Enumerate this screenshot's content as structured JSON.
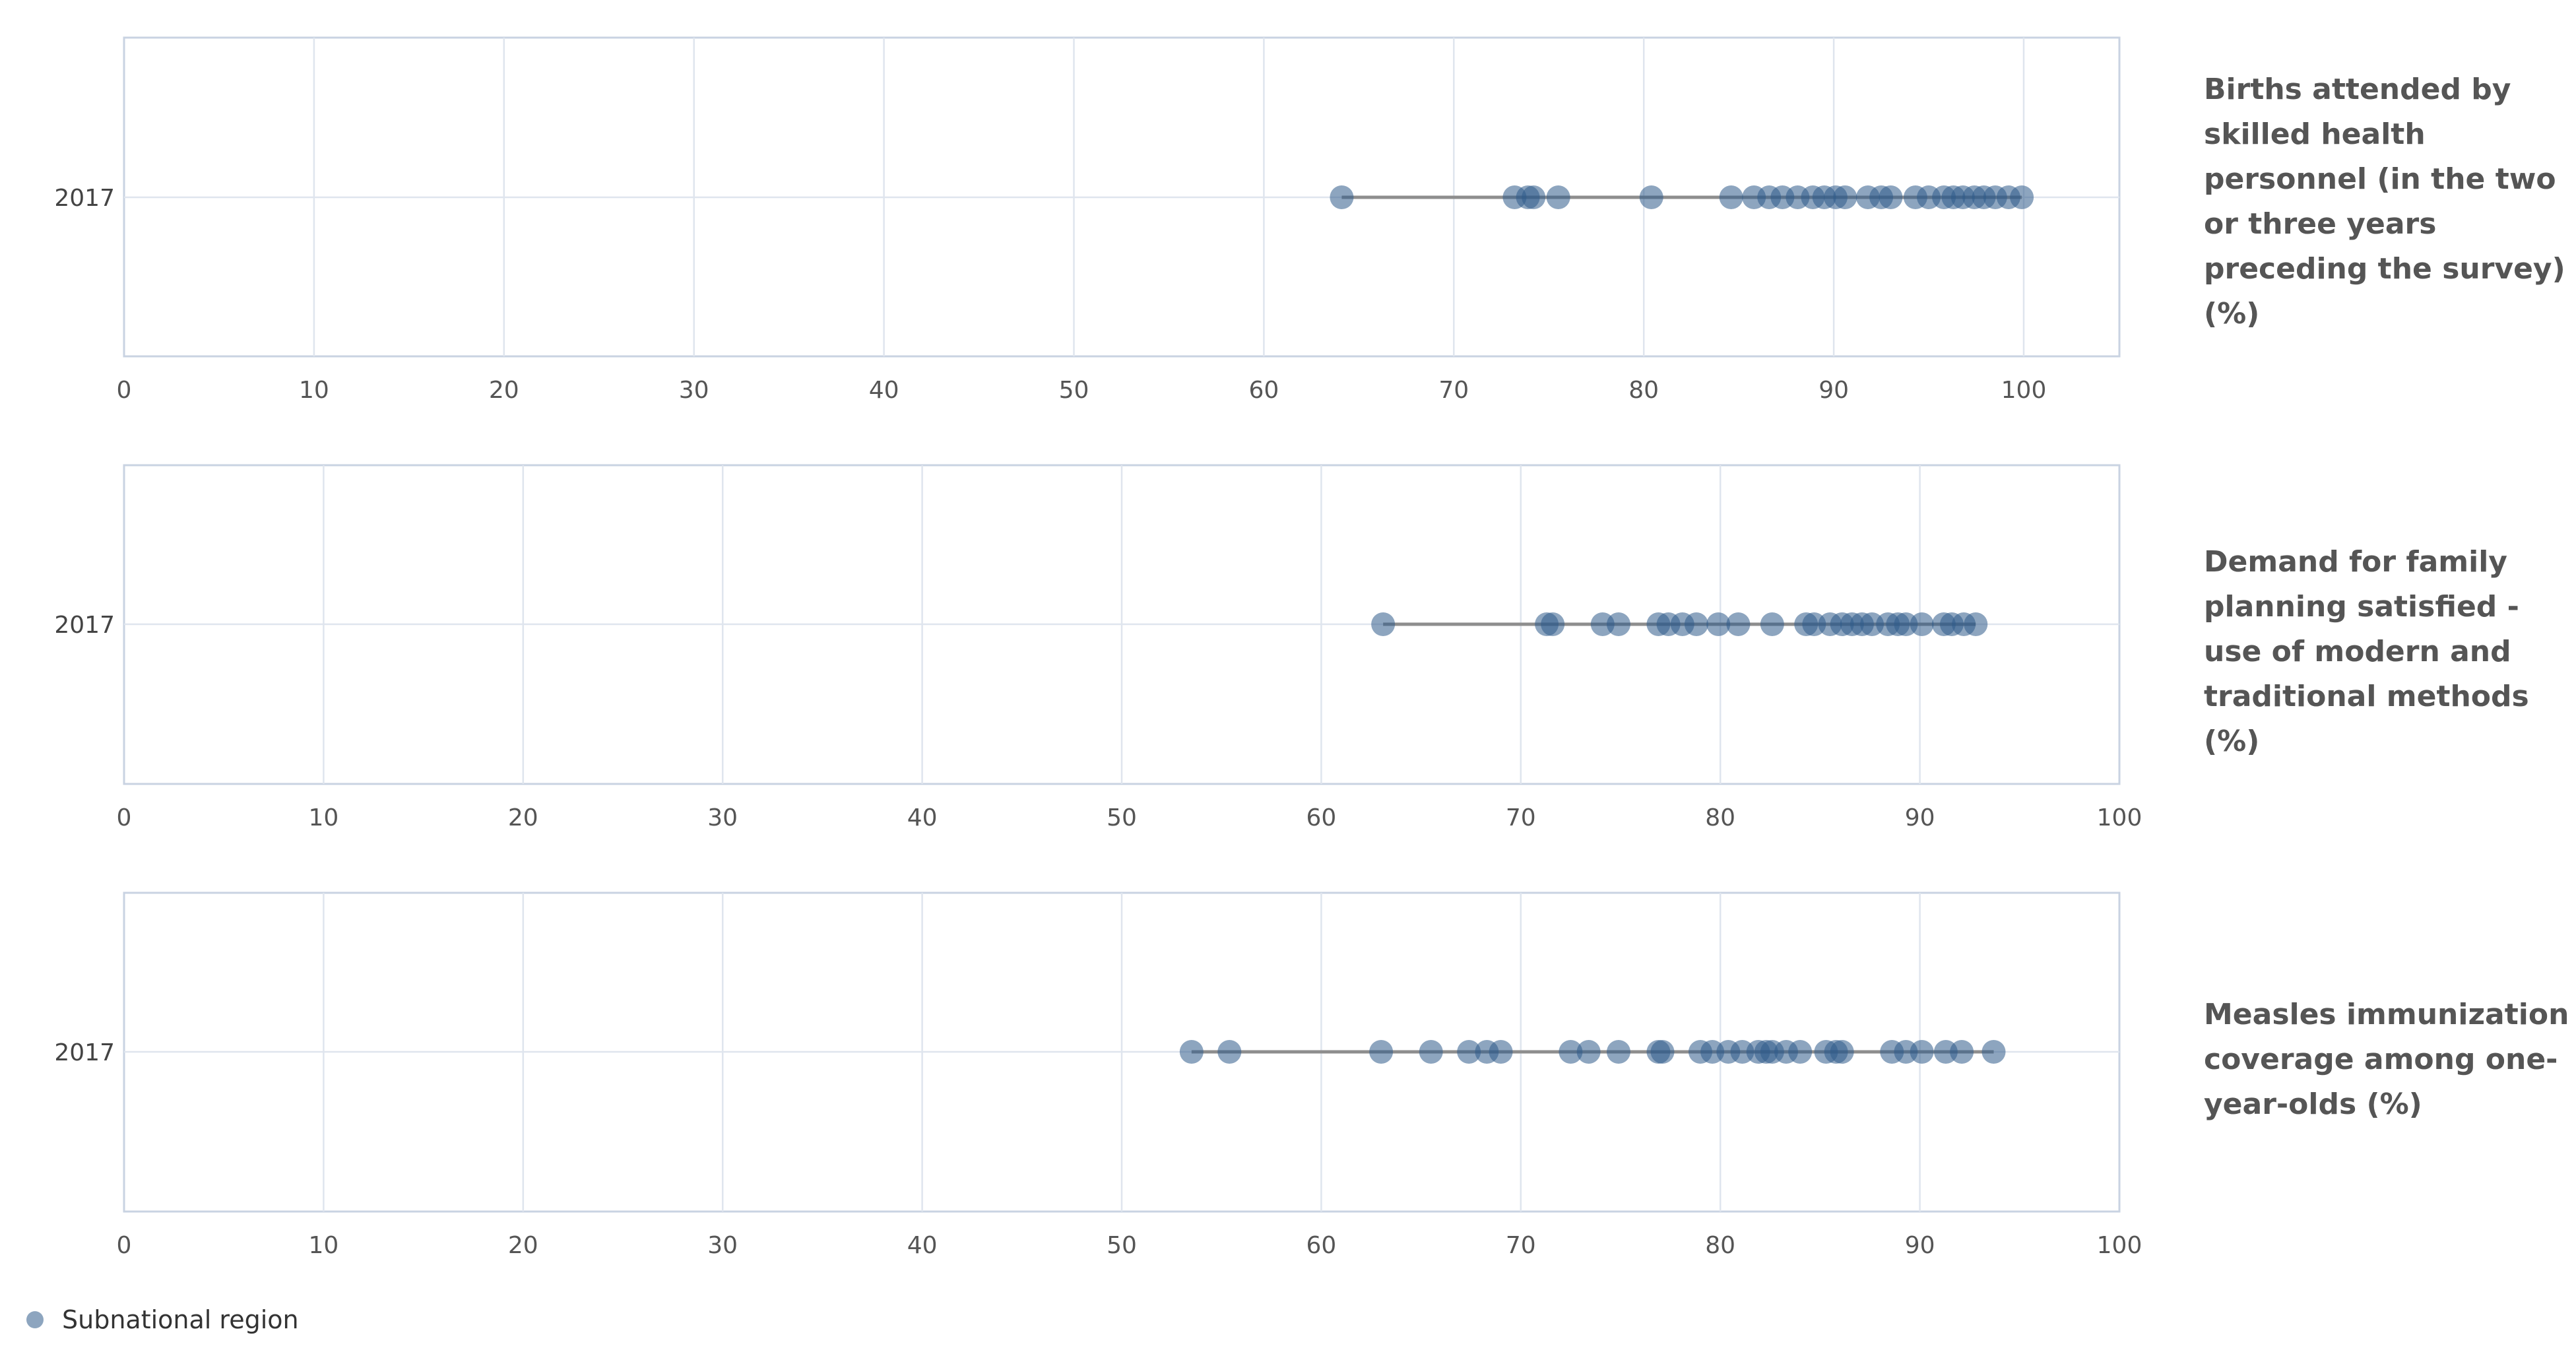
{
  "chart_data": [
    {
      "type": "scatter",
      "title": "Births attended by skilled health personnel (in the two or three years preceding the survey) (%)",
      "categories": [
        "2017"
      ],
      "xlim": [
        0,
        100
      ],
      "x_ticks": [
        "0",
        "10",
        "20",
        "30",
        "40",
        "50",
        "60",
        "70",
        "80",
        "90",
        "100"
      ],
      "grid": true,
      "series": [
        {
          "name": "Subnational region",
          "values": [
            64.1,
            73.2,
            73.9,
            74.2,
            75.5,
            80.4,
            84.6,
            85.8,
            86.6,
            87.3,
            88.1,
            88.9,
            89.5,
            90.1,
            90.6,
            91.8,
            92.5,
            93.0,
            94.3,
            95.0,
            95.8,
            96.3,
            96.8,
            97.4,
            97.9,
            98.5,
            99.2,
            99.9
          ]
        }
      ]
    },
    {
      "type": "scatter",
      "title": "Demand for family planning satisfied - use of modern and traditional methods (%)",
      "categories": [
        "2017"
      ],
      "xlim": [
        0,
        100
      ],
      "x_ticks": [
        "0",
        "10",
        "20",
        "30",
        "40",
        "50",
        "60",
        "70",
        "80",
        "90",
        "100"
      ],
      "grid": true,
      "series": [
        {
          "name": "Subnational region",
          "values": [
            63.1,
            71.3,
            71.6,
            74.1,
            74.9,
            76.9,
            77.4,
            78.1,
            78.8,
            79.9,
            80.9,
            82.6,
            84.3,
            84.7,
            85.5,
            86.1,
            86.6,
            87.1,
            87.6,
            88.4,
            88.9,
            89.3,
            90.1,
            91.2,
            91.6,
            92.2,
            92.8
          ]
        }
      ]
    },
    {
      "type": "scatter",
      "title": "Measles immunization coverage among one-year-olds (%)",
      "categories": [
        "2017"
      ],
      "xlim": [
        0,
        100
      ],
      "x_ticks": [
        "0",
        "10",
        "20",
        "30",
        "40",
        "50",
        "60",
        "70",
        "80",
        "90",
        "100"
      ],
      "grid": true,
      "series": [
        {
          "name": "Subnational region",
          "values": [
            53.5,
            55.4,
            63.0,
            65.5,
            67.4,
            68.3,
            69.0,
            72.5,
            73.4,
            74.9,
            76.9,
            77.1,
            79.0,
            79.6,
            80.4,
            81.1,
            81.9,
            82.3,
            82.6,
            83.3,
            84.0,
            85.3,
            85.8,
            86.1,
            88.6,
            89.3,
            90.1,
            91.3,
            92.1,
            93.7
          ]
        }
      ]
    }
  ],
  "legend": {
    "label": "Subnational region",
    "color": "#2f5b8a",
    "placement": "bottom-left"
  },
  "colors": {
    "marker": "#2f5b8a",
    "range_line": "#8e8e8e",
    "grid": "#dfe5ee",
    "frame": "#c9d3e2"
  }
}
